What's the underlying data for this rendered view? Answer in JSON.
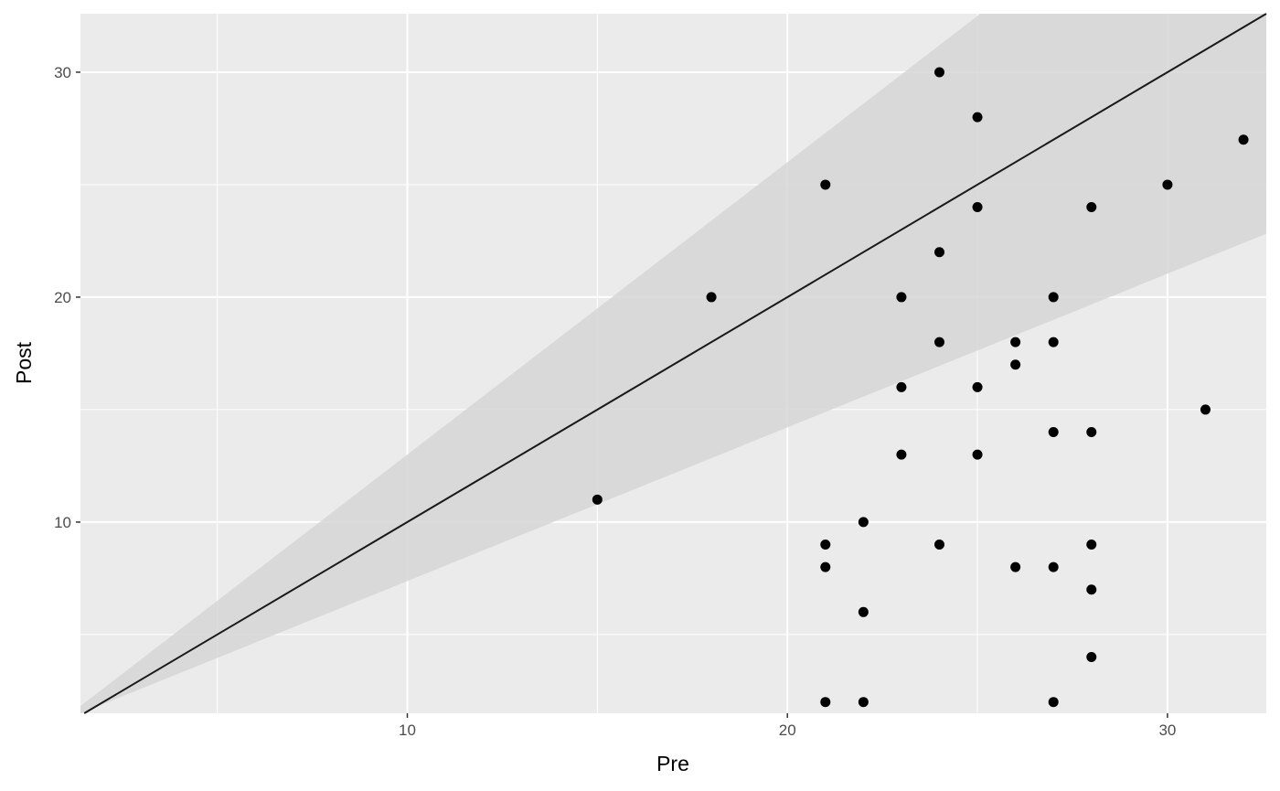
{
  "chart_data": {
    "type": "scatter",
    "title": "",
    "xlabel": "Pre",
    "ylabel": "Post",
    "xlim": [
      1.4,
      32.6
    ],
    "ylim": [
      1.5,
      32.6
    ],
    "x_major_ticks": [
      10,
      20,
      30
    ],
    "x_minor_ticks": [
      5,
      15,
      25
    ],
    "y_major_ticks": [
      10,
      20,
      30
    ],
    "y_minor_ticks": [
      5,
      15,
      25
    ],
    "x_tick_labels": [
      "10",
      "20",
      "30"
    ],
    "y_tick_labels": [
      "10",
      "20",
      "30"
    ],
    "grid": true,
    "reference_line": {
      "slope": 1,
      "intercept": 0
    },
    "band": {
      "lower_slope": 0.7,
      "upper_slope": 1.3
    },
    "points": [
      {
        "x": 15,
        "y": 11
      },
      {
        "x": 18,
        "y": 20
      },
      {
        "x": 21,
        "y": 25
      },
      {
        "x": 21,
        "y": 9
      },
      {
        "x": 21,
        "y": 8
      },
      {
        "x": 21,
        "y": 2
      },
      {
        "x": 22,
        "y": 10
      },
      {
        "x": 22,
        "y": 6
      },
      {
        "x": 22,
        "y": 2
      },
      {
        "x": 23,
        "y": 20
      },
      {
        "x": 23,
        "y": 16
      },
      {
        "x": 23,
        "y": 13
      },
      {
        "x": 24,
        "y": 30
      },
      {
        "x": 24,
        "y": 22
      },
      {
        "x": 24,
        "y": 18
      },
      {
        "x": 24,
        "y": 9
      },
      {
        "x": 25,
        "y": 28
      },
      {
        "x": 25,
        "y": 24
      },
      {
        "x": 25,
        "y": 16
      },
      {
        "x": 25,
        "y": 13
      },
      {
        "x": 26,
        "y": 18
      },
      {
        "x": 26,
        "y": 17
      },
      {
        "x": 26,
        "y": 8
      },
      {
        "x": 27,
        "y": 20
      },
      {
        "x": 27,
        "y": 18
      },
      {
        "x": 27,
        "y": 14
      },
      {
        "x": 27,
        "y": 8
      },
      {
        "x": 27,
        "y": 2
      },
      {
        "x": 28,
        "y": 24
      },
      {
        "x": 28,
        "y": 14
      },
      {
        "x": 28,
        "y": 9
      },
      {
        "x": 28,
        "y": 7
      },
      {
        "x": 28,
        "y": 4
      },
      {
        "x": 30,
        "y": 25
      },
      {
        "x": 31,
        "y": 15
      },
      {
        "x": 32,
        "y": 27
      }
    ],
    "colors": {
      "panel_background": "#ebebeb",
      "grid": "#ffffff",
      "band": "#d6d6d6",
      "line": "#1a1a1a",
      "points": "#000000"
    }
  }
}
